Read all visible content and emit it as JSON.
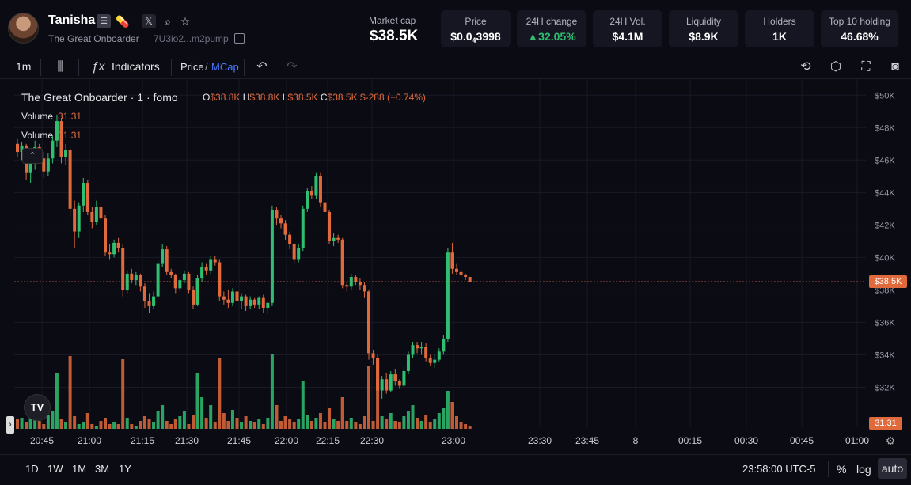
{
  "token": {
    "name": "Tanisha",
    "subtitle": "The Great Onboarder",
    "address": "7U3io2...m2pump"
  },
  "market_cap": {
    "label": "Market cap",
    "value": "$38.5K"
  },
  "stats": [
    {
      "label": "Price",
      "value_main": "$0.0",
      "value_sub": "4",
      "value_tail": "3998",
      "status": "neutral"
    },
    {
      "label": "24H change",
      "value": "▲32.05%",
      "status": "up"
    },
    {
      "label": "24H Vol.",
      "value": "$4.1M",
      "status": "neutral"
    },
    {
      "label": "Liquidity",
      "value": "$8.9K",
      "status": "neutral"
    },
    {
      "label": "Holders",
      "value": "1K",
      "status": "neutral"
    },
    {
      "label": "Top 10 holding",
      "value": "46.68%",
      "status": "neutral"
    }
  ],
  "toolbar": {
    "interval": "1m",
    "indicators_label": "Indicators",
    "price_label": "Price",
    "slash": "/",
    "mcap_label": "MCap"
  },
  "legend": {
    "title": "The Great Onboarder · 1 · fomo",
    "o_key": "O",
    "o_val": "$38.8K",
    "h_key": "H",
    "h_val": "$38.8K",
    "l_key": "L",
    "l_val": "$38.5K",
    "c_key": "C",
    "c_val": "$38.5K",
    "change": "$-288 (−0.74%)",
    "volume_rows": [
      {
        "label": "Volume",
        "value": "31.31"
      },
      {
        "label": "Volume",
        "value": "31.31"
      }
    ]
  },
  "price_tag": "$38.5K",
  "volume_tag": "31.31",
  "bottombar": {
    "ranges": [
      "1D",
      "1W",
      "1M",
      "3M",
      "1Y"
    ],
    "clock": "23:58:00 UTC-5",
    "percent": "%",
    "log": "log",
    "auto": "auto"
  },
  "colors": {
    "up": "#2fbf71",
    "down": "#e06a3b",
    "bg": "#0b0b14",
    "grid": "#1a1a26",
    "accent": "#4a7bff"
  },
  "chart_data": {
    "type": "candlestick",
    "y_axis": {
      "unit": "$",
      "ticks": [
        "$50K",
        "$48K",
        "$46K",
        "$44K",
        "$42K",
        "$40K",
        "$38K",
        "$36K",
        "$34K",
        "$32K"
      ],
      "ylim": [
        31000,
        50500
      ]
    },
    "x_axis": {
      "ticks": [
        "20:45",
        "21:00",
        "21:15",
        "21:30",
        "21:45",
        "22:00",
        "22:15",
        "22:30",
        "23:00",
        "23:30",
        "23:45",
        "8",
        "00:15",
        "00:30",
        "00:45",
        "01:00"
      ]
    },
    "last_price": 38500,
    "candles": [
      [
        47.0,
        47.3,
        46.2,
        46.5
      ],
      [
        46.5,
        47.1,
        46.0,
        46.9
      ],
      [
        46.9,
        47.0,
        44.8,
        45.2
      ],
      [
        45.2,
        46.0,
        44.6,
        45.8
      ],
      [
        45.8,
        47.2,
        45.4,
        46.8
      ],
      [
        46.8,
        47.0,
        45.9,
        46.1
      ],
      [
        46.1,
        46.5,
        44.9,
        45.3
      ],
      [
        45.3,
        46.4,
        45.0,
        46.1
      ],
      [
        46.1,
        47.5,
        45.8,
        47.2
      ],
      [
        47.2,
        48.8,
        46.8,
        48.4
      ],
      [
        48.4,
        48.6,
        45.8,
        46.2
      ],
      [
        46.2,
        47.0,
        45.7,
        46.6
      ],
      [
        46.6,
        46.8,
        42.5,
        43.0
      ],
      [
        43.0,
        43.5,
        40.6,
        41.6
      ],
      [
        41.6,
        43.4,
        41.2,
        43.2
      ],
      [
        43.2,
        44.9,
        42.8,
        44.6
      ],
      [
        44.6,
        44.8,
        42.6,
        42.8
      ],
      [
        42.8,
        43.1,
        41.8,
        42.2
      ],
      [
        42.2,
        43.5,
        42.0,
        43.1
      ],
      [
        43.1,
        43.3,
        42.1,
        42.4
      ],
      [
        42.4,
        42.6,
        40.1,
        40.3
      ],
      [
        40.3,
        40.8,
        39.9,
        40.2
      ],
      [
        40.2,
        41.1,
        40.0,
        40.9
      ],
      [
        40.9,
        41.2,
        40.3,
        40.6
      ],
      [
        40.6,
        40.8,
        37.6,
        38.0
      ],
      [
        38.0,
        39.2,
        37.8,
        39.0
      ],
      [
        39.0,
        39.3,
        38.4,
        38.6
      ],
      [
        38.6,
        39.1,
        38.3,
        38.9
      ],
      [
        38.9,
        39.0,
        37.9,
        38.2
      ],
      [
        38.2,
        38.4,
        36.9,
        37.3
      ],
      [
        37.3,
        37.8,
        36.6,
        37.0
      ],
      [
        37.0,
        37.9,
        36.8,
        37.6
      ],
      [
        37.6,
        39.8,
        37.5,
        39.6
      ],
      [
        39.6,
        40.8,
        39.4,
        40.5
      ],
      [
        40.5,
        40.7,
        38.9,
        39.1
      ],
      [
        39.1,
        39.3,
        38.7,
        38.9
      ],
      [
        38.9,
        39.0,
        37.8,
        38.1
      ],
      [
        38.1,
        38.7,
        37.9,
        38.6
      ],
      [
        38.6,
        39.2,
        38.4,
        39.0
      ],
      [
        39.0,
        39.1,
        37.8,
        38.0
      ],
      [
        38.0,
        38.2,
        36.8,
        37.1
      ],
      [
        37.1,
        38.9,
        37.0,
        38.7
      ],
      [
        38.7,
        39.7,
        38.5,
        39.4
      ],
      [
        39.4,
        39.6,
        38.9,
        39.2
      ],
      [
        39.2,
        40.1,
        39.0,
        39.9
      ],
      [
        39.9,
        40.1,
        39.5,
        39.7
      ],
      [
        39.7,
        39.9,
        37.3,
        37.6
      ],
      [
        37.6,
        37.9,
        37.1,
        37.4
      ],
      [
        37.4,
        38.0,
        36.9,
        37.2
      ],
      [
        37.2,
        38.1,
        37.0,
        37.9
      ],
      [
        37.9,
        38.0,
        37.1,
        37.3
      ],
      [
        37.3,
        37.8,
        36.8,
        37.6
      ],
      [
        37.6,
        37.7,
        36.7,
        37.0
      ],
      [
        37.0,
        37.6,
        36.8,
        37.4
      ],
      [
        37.4,
        37.5,
        36.9,
        37.1
      ],
      [
        37.1,
        37.6,
        36.8,
        37.5
      ],
      [
        37.5,
        37.7,
        36.6,
        36.9
      ],
      [
        36.9,
        37.3,
        36.5,
        37.2
      ],
      [
        37.2,
        43.2,
        37.0,
        42.9
      ],
      [
        42.9,
        43.1,
        42.0,
        42.4
      ],
      [
        42.4,
        42.6,
        41.8,
        42.1
      ],
      [
        42.1,
        42.3,
        41.1,
        41.4
      ],
      [
        41.4,
        41.6,
        40.5,
        40.8
      ],
      [
        40.8,
        40.9,
        39.6,
        39.9
      ],
      [
        39.9,
        40.8,
        39.7,
        40.6
      ],
      [
        40.6,
        43.2,
        40.4,
        43.0
      ],
      [
        43.0,
        44.3,
        42.8,
        44.1
      ],
      [
        44.1,
        44.4,
        43.6,
        43.8
      ],
      [
        43.8,
        45.2,
        43.6,
        45.0
      ],
      [
        45.0,
        45.2,
        43.1,
        43.4
      ],
      [
        43.4,
        43.5,
        42.5,
        42.8
      ],
      [
        42.8,
        42.9,
        40.8,
        41.0
      ],
      [
        41.0,
        41.5,
        40.7,
        41.2
      ],
      [
        41.2,
        41.4,
        40.9,
        41.1
      ],
      [
        41.1,
        41.2,
        38.1,
        38.3
      ],
      [
        38.3,
        38.5,
        37.9,
        38.2
      ],
      [
        38.2,
        39.0,
        38.0,
        38.8
      ],
      [
        38.8,
        38.9,
        38.3,
        38.5
      ],
      [
        38.5,
        38.7,
        38.0,
        38.3
      ],
      [
        38.3,
        38.5,
        37.5,
        37.9
      ],
      [
        37.9,
        38.0,
        33.7,
        34.1
      ],
      [
        34.1,
        34.3,
        33.4,
        33.8
      ],
      [
        33.8,
        34.0,
        31.3,
        31.8
      ],
      [
        31.8,
        32.7,
        31.3,
        32.5
      ],
      [
        32.5,
        32.9,
        31.6,
        31.8
      ],
      [
        31.8,
        33.0,
        31.7,
        32.8
      ],
      [
        32.8,
        33.1,
        32.1,
        32.4
      ],
      [
        32.4,
        32.5,
        31.9,
        32.1
      ],
      [
        32.1,
        33.3,
        32.0,
        33.0
      ],
      [
        33.0,
        34.2,
        32.8,
        34.0
      ],
      [
        34.0,
        34.8,
        33.8,
        34.6
      ],
      [
        34.6,
        34.8,
        34.1,
        34.4
      ],
      [
        34.4,
        34.8,
        34.0,
        34.5
      ],
      [
        34.5,
        34.7,
        33.6,
        33.8
      ],
      [
        33.8,
        34.0,
        33.3,
        33.5
      ],
      [
        33.5,
        34.0,
        33.2,
        33.7
      ],
      [
        33.7,
        34.4,
        33.6,
        34.2
      ],
      [
        34.2,
        35.2,
        34.0,
        35.0
      ],
      [
        35.0,
        40.6,
        34.8,
        40.3
      ],
      [
        40.3,
        40.9,
        39.0,
        39.3
      ],
      [
        39.3,
        39.6,
        38.9,
        39.1
      ],
      [
        39.1,
        39.3,
        38.8,
        38.9
      ],
      [
        38.9,
        39.0,
        38.6,
        38.8
      ],
      [
        38.8,
        38.8,
        38.5,
        38.5
      ]
    ],
    "volumes": [
      12,
      14,
      8,
      20,
      24,
      10,
      6,
      18,
      22,
      70,
      12,
      8,
      92,
      16,
      6,
      8,
      20,
      6,
      4,
      10,
      14,
      6,
      8,
      6,
      88,
      14,
      6,
      4,
      10,
      16,
      12,
      8,
      22,
      30,
      10,
      6,
      12,
      16,
      22,
      6,
      18,
      70,
      40,
      14,
      30,
      8,
      90,
      20,
      10,
      24,
      14,
      8,
      16,
      10,
      8,
      12,
      6,
      14,
      94,
      30,
      10,
      16,
      12,
      8,
      12,
      60,
      18,
      10,
      14,
      20,
      8,
      26,
      12,
      10,
      40,
      10,
      14,
      8,
      6,
      16,
      80,
      10,
      90,
      16,
      12,
      20,
      10,
      8,
      16,
      22,
      30,
      14,
      10,
      18,
      8,
      12,
      20,
      26,
      48,
      34,
      16,
      8,
      6,
      4
    ]
  }
}
